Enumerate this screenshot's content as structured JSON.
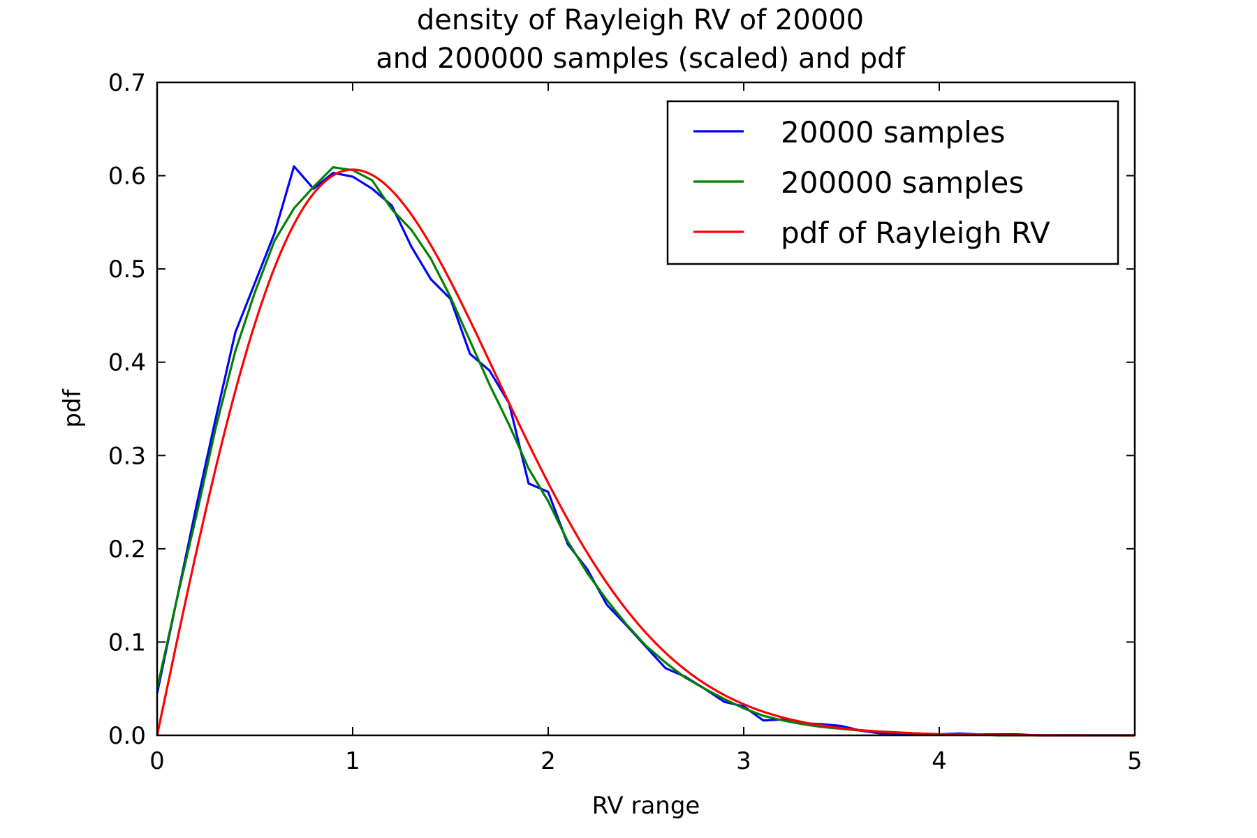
{
  "chart_data": {
    "type": "line",
    "title": [
      "density of Rayleigh RV of 20000",
      "and 200000 samples (scaled) and pdf"
    ],
    "xlabel": "RV range",
    "ylabel": "pdf",
    "xlim": [
      0,
      5
    ],
    "ylim": [
      0,
      0.7
    ],
    "xticks": [
      0,
      1,
      2,
      3,
      4,
      5
    ],
    "xtick_labels": [
      "0",
      "1",
      "2",
      "3",
      "4",
      "5"
    ],
    "yticks": [
      0.0,
      0.1,
      0.2,
      0.3,
      0.4,
      0.5,
      0.6,
      0.7
    ],
    "ytick_labels": [
      "0.0",
      "0.1",
      "0.2",
      "0.3",
      "0.4",
      "0.5",
      "0.6",
      "0.7"
    ],
    "grid": false,
    "legend_position": "top-right",
    "series": [
      {
        "name": "20000 samples",
        "color": "#0000ff",
        "x": [
          0.0,
          0.1,
          0.2,
          0.3,
          0.4,
          0.5,
          0.6,
          0.7,
          0.8,
          0.9,
          1.0,
          1.1,
          1.2,
          1.3,
          1.4,
          1.5,
          1.6,
          1.7,
          1.8,
          1.9,
          2.0,
          2.1,
          2.2,
          2.3,
          2.4,
          2.5,
          2.6,
          2.7,
          2.8,
          2.9,
          3.0,
          3.1,
          3.2,
          3.3,
          3.4,
          3.5,
          3.6,
          3.7,
          3.8,
          3.9,
          4.0,
          4.1,
          4.2,
          4.3,
          4.4,
          4.5,
          4.6,
          4.7,
          4.8,
          4.9,
          5.0
        ],
        "y": [
          0.045,
          0.145,
          0.245,
          0.34,
          0.432,
          0.485,
          0.538,
          0.61,
          0.586,
          0.603,
          0.599,
          0.586,
          0.568,
          0.524,
          0.489,
          0.468,
          0.409,
          0.391,
          0.356,
          0.27,
          0.261,
          0.205,
          0.178,
          0.14,
          0.118,
          0.095,
          0.072,
          0.063,
          0.05,
          0.036,
          0.031,
          0.016,
          0.017,
          0.013,
          0.012,
          0.01,
          0.005,
          0.002,
          0.002,
          0.001,
          0.001,
          0.002,
          0.001,
          0.001,
          0.001,
          0.0,
          0.0,
          0.0,
          0.0,
          0.0,
          0.0
        ]
      },
      {
        "name": "200000 samples",
        "color": "#008000",
        "x": [
          0.0,
          0.1,
          0.2,
          0.3,
          0.4,
          0.5,
          0.6,
          0.7,
          0.8,
          0.9,
          1.0,
          1.1,
          1.2,
          1.3,
          1.4,
          1.5,
          1.6,
          1.7,
          1.8,
          1.9,
          2.0,
          2.1,
          2.2,
          2.3,
          2.4,
          2.5,
          2.6,
          2.7,
          2.8,
          2.9,
          3.0,
          3.1,
          3.2,
          3.3,
          3.4,
          3.5,
          3.6,
          3.7,
          3.8,
          3.9,
          4.0,
          4.1,
          4.2,
          4.3,
          4.4,
          4.5,
          4.6,
          4.7,
          4.8,
          4.9,
          5.0
        ],
        "y": [
          0.05,
          0.145,
          0.235,
          0.33,
          0.412,
          0.475,
          0.53,
          0.565,
          0.588,
          0.609,
          0.606,
          0.595,
          0.564,
          0.542,
          0.511,
          0.47,
          0.423,
          0.376,
          0.333,
          0.286,
          0.251,
          0.208,
          0.174,
          0.145,
          0.119,
          0.096,
          0.078,
          0.062,
          0.05,
          0.039,
          0.029,
          0.021,
          0.016,
          0.012,
          0.009,
          0.007,
          0.005,
          0.004,
          0.003,
          0.002,
          0.001,
          0.001,
          0.001,
          0.0,
          0.0,
          0.0,
          0.0,
          0.0,
          0.0,
          0.0,
          0.0
        ]
      },
      {
        "name": "pdf of Rayleigh RV",
        "color": "#ff0000",
        "function": "rayleigh_pdf",
        "sigma": 1,
        "x_range": [
          0,
          5
        ]
      }
    ]
  }
}
